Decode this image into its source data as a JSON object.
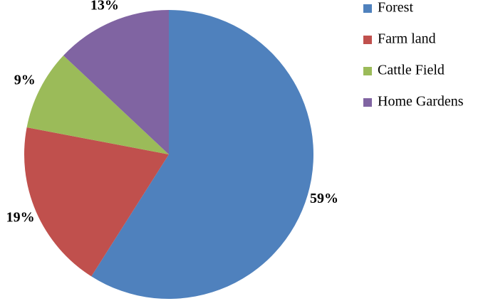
{
  "chart_data": {
    "type": "pie",
    "categories": [
      "Forest",
      "Farm land",
      "Cattle Field",
      "Home Gardens"
    ],
    "values": [
      59,
      19,
      9,
      13
    ],
    "value_labels": [
      "59%",
      "19%",
      "9%",
      "13%"
    ],
    "colors": [
      "#4f81bd",
      "#c0504d",
      "#9bbb59",
      "#8064a2"
    ],
    "legend": "right"
  }
}
